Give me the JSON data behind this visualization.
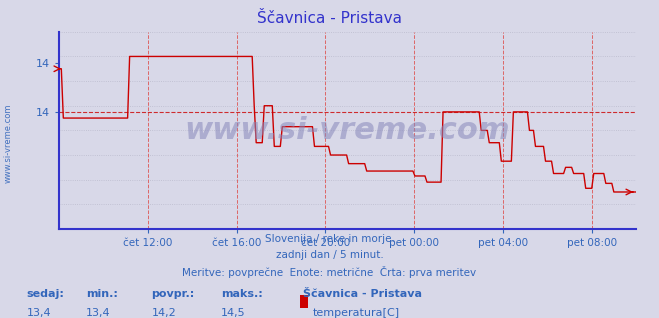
{
  "title": "Ščavnica - Pristava",
  "subtitle_lines": [
    "Slovenija / reke in morje.",
    "zadnji dan / 5 minut.",
    "Meritve: povprečne  Enote: metrične  Črta: prva meritev"
  ],
  "stats_labels": [
    "sedaj:",
    "min.:",
    "povpr.:",
    "maks.:"
  ],
  "stats_values": [
    "13,4",
    "13,4",
    "14,2",
    "14,5"
  ],
  "legend_label": "Ščavnica - Pristava",
  "legend_unit": "temperatura[C]",
  "line_color": "#cc0000",
  "background_color": "#d8d8e8",
  "plot_bg_color": "#d8d8e8",
  "grid_color_v": "#dd6666",
  "grid_color_h": "#bbbbcc",
  "axis_color": "#3333cc",
  "text_color": "#3366bb",
  "watermark": "www.si-vreme.com",
  "x_tick_labels": [
    "čet 12:00",
    "čet 16:00",
    "čet 20:00",
    "pet 00:00",
    "pet 04:00",
    "pet 08:00"
  ],
  "ylim": [
    13.05,
    14.65
  ],
  "ytick_vals": [
    14.4,
    14.0
  ],
  "ytick_labels": [
    "14",
    "14"
  ]
}
